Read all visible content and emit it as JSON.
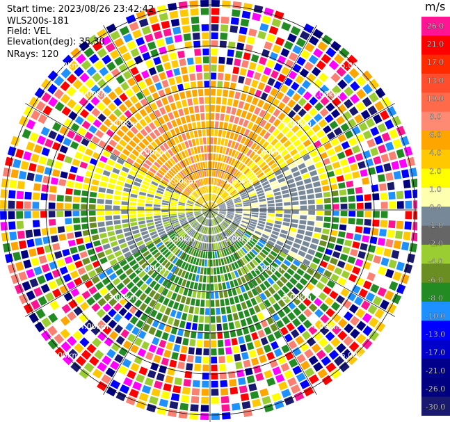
{
  "header": {
    "start_time": "Start time: 2023/08/26 23:42:42",
    "instrument": "WLS200s-181",
    "field": "Field: VEL",
    "elevation": "Elevation(deg): 35.30",
    "nrays": "NRays: 120"
  },
  "chart_data": {
    "type": "heatmap",
    "projection": "polar (PPI)",
    "unit": "m/s",
    "n_rays": 120,
    "range_ring_labels": [
      "1.00km",
      "2.00km",
      "3.00km",
      "4.00km",
      "5.00km"
    ],
    "range_rings_km": [
      1,
      2,
      3,
      4,
      5
    ],
    "colorbar": {
      "ticks": [
        "26.0",
        "21.0",
        "17.0",
        "13.0",
        "10.0",
        "8.0",
        "6.0",
        "4.0",
        "2.0",
        "1.0",
        "0.0",
        "-1.0",
        "-2.0",
        "-4.0",
        "-6.0",
        "-8.0",
        "-10.0",
        "-13.0",
        "-17.0",
        "-21.0",
        "-26.0",
        "-30.0"
      ],
      "colors": [
        "#ff1493",
        "#ff0000",
        "#ff2a00",
        "#ff4d2e",
        "#ff6a4a",
        "#ff8a73",
        "#ffa500",
        "#ffc800",
        "#ffff00",
        "#ffffb0",
        "#778899",
        "#666666",
        "#9acd32",
        "#6b8e23",
        "#228b22",
        "#1e90ff",
        "#0000ff",
        "#0000cd",
        "#00008b",
        "#000080",
        "#191970"
      ]
    },
    "pattern": {
      "inner_range_km": 3,
      "north_hemisphere": "positive (orange/yellow)",
      "south_hemisphere": "negative (green)",
      "outer_range": "noise (mixed colors)"
    }
  }
}
